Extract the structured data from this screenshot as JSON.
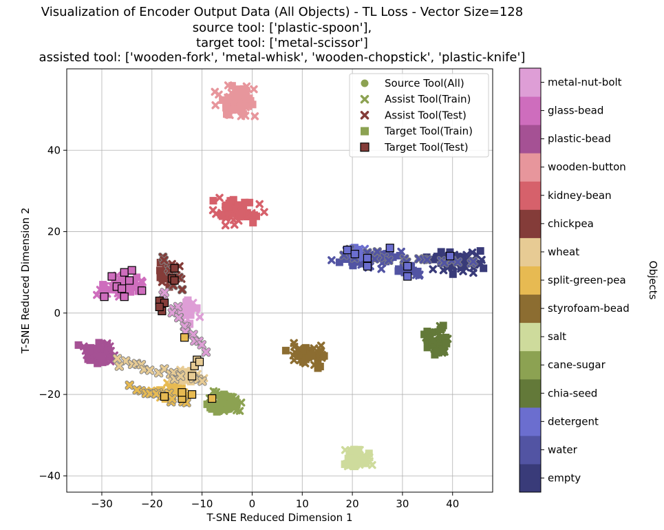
{
  "chart_data": {
    "type": "scatter",
    "title_lines": [
      "Visualization of Encoder Output Data (All Objects) - TL Loss - Vector Size=128",
      "source tool: ['plastic-spoon'],",
      "target tool: ['metal-scissor']",
      "assisted tool: ['wooden-fork', 'metal-whisk', 'wooden-chopstick', 'plastic-knife']"
    ],
    "xlabel": "T-SNE Reduced Dimension 1",
    "ylabel": "T-SNE Reduced Dimension 2",
    "xlim": [
      -37,
      48
    ],
    "ylim": [
      -44,
      60
    ],
    "xticks": [
      -30,
      -20,
      -10,
      0,
      10,
      20,
      30,
      40
    ],
    "yticks": [
      -40,
      -20,
      0,
      20,
      40
    ],
    "grid": true,
    "legend_position": "top-right",
    "legend": [
      {
        "label": "Source Tool(All)",
        "marker": "circle",
        "color": "#8ca252"
      },
      {
        "label": "Assist Tool(Train)",
        "marker": "x",
        "color": "#8ca252"
      },
      {
        "label": "Assist Tool(Test)",
        "marker": "x",
        "color": "#843c39"
      },
      {
        "label": "Target Tool(Train)",
        "marker": "square",
        "color": "#8ca252"
      },
      {
        "label": "Target Tool(Test)",
        "marker": "square-edge",
        "color": "#843c39"
      }
    ],
    "colorbar": {
      "label": "Objects",
      "classes": [
        {
          "name": "empty",
          "color": "#393b79"
        },
        {
          "name": "water",
          "color": "#5254a3"
        },
        {
          "name": "detergent",
          "color": "#6b6ecf"
        },
        {
          "name": "chia-seed",
          "color": "#637939"
        },
        {
          "name": "cane-sugar",
          "color": "#8ca252"
        },
        {
          "name": "salt",
          "color": "#cedb9c"
        },
        {
          "name": "styrofoam-bead",
          "color": "#8c6d31"
        },
        {
          "name": "split-green-pea",
          "color": "#e7ba52"
        },
        {
          "name": "wheat",
          "color": "#e7cb94"
        },
        {
          "name": "chickpea",
          "color": "#843c39"
        },
        {
          "name": "kidney-bean",
          "color": "#d6616b"
        },
        {
          "name": "wooden-button",
          "color": "#e7969c"
        },
        {
          "name": "plastic-bead",
          "color": "#a55194"
        },
        {
          "name": "glass-bead",
          "color": "#ce6dbd"
        },
        {
          "name": "metal-nut-bolt",
          "color": "#de9ed6"
        }
      ]
    },
    "clusters": [
      {
        "object": "wooden-button",
        "center": [
          -3,
          52
        ],
        "spread": [
          3.5,
          3.2
        ],
        "n": 70
      },
      {
        "object": "kidney-bean",
        "center": [
          -3.5,
          25
        ],
        "spread": [
          4,
          2.5
        ],
        "n": 60
      },
      {
        "object": "empty",
        "center": [
          40.5,
          13
        ],
        "spread": [
          4.5,
          2.2
        ],
        "n": 70
      },
      {
        "object": "water",
        "center": [
          23,
          13.5
        ],
        "spread": [
          5,
          2
        ],
        "n": 60
      },
      {
        "object": "water",
        "center": [
          31.5,
          10.5
        ],
        "spread": [
          2,
          1.5
        ],
        "n": 20
      },
      {
        "object": "detergent",
        "center": [
          20.5,
          15
        ],
        "spread": [
          2,
          1.2
        ],
        "n": 15
      },
      {
        "object": "chia-seed",
        "center": [
          37,
          -7
        ],
        "spread": [
          2,
          3.2
        ],
        "n": 55
      },
      {
        "object": "styrofoam-bead",
        "center": [
          11,
          -10.5
        ],
        "spread": [
          3.2,
          2.2
        ],
        "n": 55
      },
      {
        "object": "salt",
        "center": [
          20.5,
          -36
        ],
        "spread": [
          2.5,
          2
        ],
        "n": 50
      },
      {
        "object": "cane-sugar",
        "center": [
          -5.5,
          -22
        ],
        "spread": [
          3.2,
          2.3
        ],
        "n": 60
      },
      {
        "object": "plastic-bead",
        "center": [
          -30.5,
          -10
        ],
        "spread": [
          3,
          2.3
        ],
        "n": 55
      },
      {
        "object": "glass-bead",
        "center": [
          -26,
          6
        ],
        "spread": [
          3.8,
          2.3
        ],
        "n": 50
      },
      {
        "object": "chickpea",
        "center": [
          -16.5,
          10
        ],
        "spread": [
          1.8,
          2.8
        ],
        "n": 30
      },
      {
        "object": "split-green-pea",
        "center": [
          -17,
          -19
        ],
        "spread": [
          3.2,
          1.5
        ],
        "n": 35
      },
      {
        "object": "wheat",
        "center": [
          -13,
          -15.5
        ],
        "spread": [
          2.5,
          1.5
        ],
        "n": 25
      },
      {
        "object": "metal-nut-bolt",
        "center": [
          -12.5,
          1
        ],
        "spread": [
          1.8,
          3.5
        ],
        "n": 25
      }
    ],
    "assist_trails": [
      {
        "object": "metal-nut-bolt",
        "from": [
          -18,
          5
        ],
        "to": [
          -10,
          -9
        ],
        "n": 16
      },
      {
        "object": "wheat",
        "from": [
          -27,
          -12
        ],
        "to": [
          -10,
          -17
        ],
        "n": 18
      },
      {
        "object": "split-green-pea",
        "from": [
          -24,
          -18
        ],
        "to": [
          -13,
          -22
        ],
        "n": 14
      },
      {
        "object": "chickpea",
        "from": [
          -18,
          13
        ],
        "to": [
          -14,
          6
        ],
        "n": 8
      },
      {
        "object": "water",
        "from": [
          18,
          15
        ],
        "to": [
          44,
          12
        ],
        "n": 20
      }
    ],
    "target_test": [
      {
        "object": "glass-bead",
        "points": [
          [
            -29.5,
            4
          ],
          [
            -28,
            9
          ],
          [
            -27,
            6.5
          ],
          [
            -25.5,
            10
          ],
          [
            -24.5,
            8
          ],
          [
            -24,
            10.5
          ],
          [
            -25.5,
            4
          ],
          [
            -22,
            5.5
          ],
          [
            -26,
            6
          ]
        ]
      },
      {
        "object": "chickpea",
        "points": [
          [
            -18.5,
            3
          ],
          [
            -18,
            0.5
          ],
          [
            -17.5,
            2.5
          ],
          [
            -16,
            8.5
          ],
          [
            -15.5,
            11
          ],
          [
            -15.5,
            8
          ],
          [
            -18.5,
            1.5
          ]
        ]
      },
      {
        "object": "detergent",
        "points": [
          [
            19,
            15.5
          ],
          [
            20.5,
            14.5
          ],
          [
            23,
            13.5
          ],
          [
            23,
            11.5
          ],
          [
            27.5,
            16
          ],
          [
            31,
            11.5
          ],
          [
            31,
            9
          ],
          [
            39.5,
            14
          ]
        ]
      },
      {
        "object": "wheat",
        "points": [
          [
            -11,
            -11.5
          ],
          [
            -11.5,
            -13
          ],
          [
            -12,
            -15.5
          ],
          [
            -10.5,
            -12
          ]
        ]
      },
      {
        "object": "split-green-pea",
        "points": [
          [
            -17.5,
            -20.5
          ],
          [
            -14,
            -21
          ],
          [
            -14,
            -19.5
          ],
          [
            -12,
            -20
          ],
          [
            -8,
            -21
          ],
          [
            -13.5,
            -6
          ]
        ]
      }
    ]
  }
}
